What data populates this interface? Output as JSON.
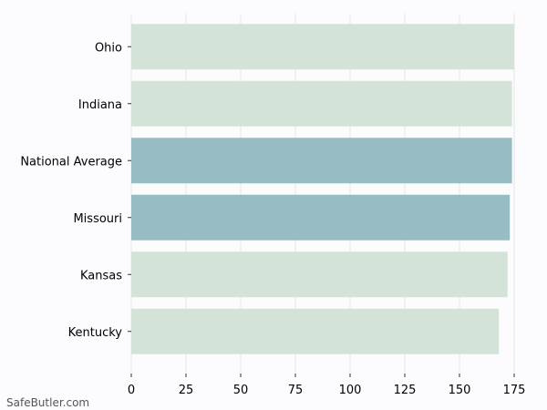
{
  "chart_data": {
    "type": "bar",
    "orientation": "horizontal",
    "categories": [
      "Ohio",
      "Indiana",
      "National Average",
      "Missouri",
      "Kansas",
      "Kentucky"
    ],
    "values": [
      175,
      174,
      174,
      173,
      172,
      168
    ],
    "highlighted": [
      "National Average",
      "Missouri"
    ],
    "title": "",
    "xlabel": "",
    "ylabel": "",
    "xlim": [
      0,
      175
    ],
    "xticks": [
      0,
      25,
      50,
      75,
      100,
      125,
      150,
      175
    ],
    "grid": "vertical",
    "colors": {
      "default": "#d4e3d8",
      "highlight": "#97bcc4",
      "grid": "#e6e6e6"
    }
  },
  "watermark": "SafeButler.com"
}
